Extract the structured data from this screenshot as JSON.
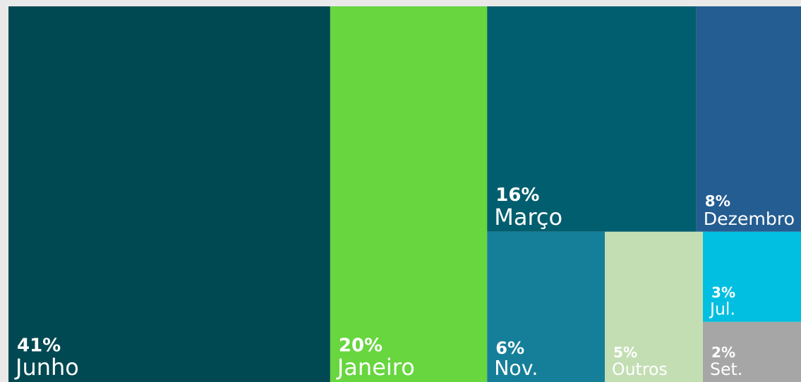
{
  "chart_data": {
    "type": "treemap",
    "categories": [
      "Junho",
      "Janeiro",
      "Março",
      "Dezembro",
      "Nov.",
      "Outros",
      "Jul.",
      "Set."
    ],
    "values": [
      41,
      20,
      16,
      8,
      6,
      5,
      3,
      2
    ],
    "value_labels": [
      "41%",
      "20%",
      "16%",
      "8%",
      "6%",
      "5%",
      "3%",
      "2%"
    ],
    "colors": [
      "#004852",
      "#67d63f",
      "#005e6e",
      "#245d91",
      "#157f99",
      "#c4deb4",
      "#00bfe0",
      "#a6a6a6"
    ]
  }
}
